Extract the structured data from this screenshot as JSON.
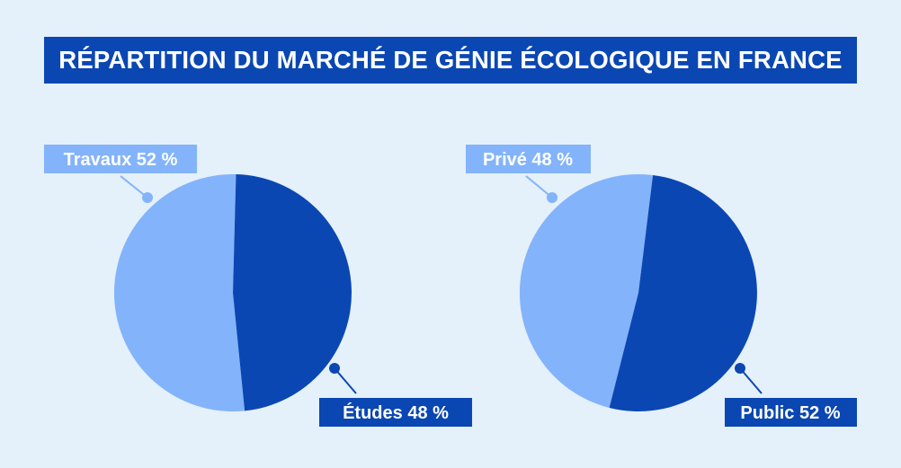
{
  "title": "RÉPARTITION DU MARCHÉ DE GÉNIE ÉCOLOGIQUE EN FRANCE",
  "colors": {
    "background": "#e4f0fa",
    "dark_blue": "#0b47b3",
    "light_blue": "#83b3fb",
    "white": "#ffffff"
  },
  "chart_data": [
    {
      "type": "pie",
      "slices": [
        {
          "label": "Travaux 52 %",
          "value": 52,
          "color": "#83b3fb"
        },
        {
          "label": "Études 48 %",
          "value": 48,
          "color": "#0b47b3"
        }
      ]
    },
    {
      "type": "pie",
      "slices": [
        {
          "label": "Privé 48 %",
          "value": 48,
          "color": "#83b3fb"
        },
        {
          "label": "Public 52 %",
          "value": 52,
          "color": "#0b47b3"
        }
      ]
    }
  ]
}
